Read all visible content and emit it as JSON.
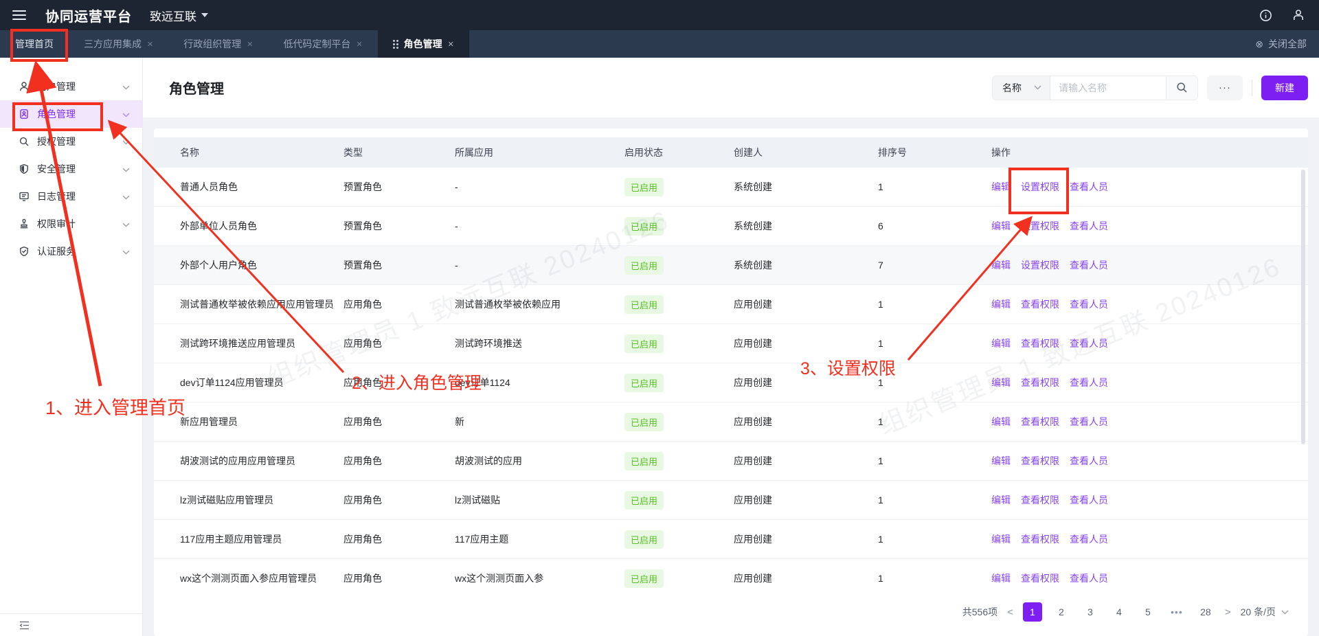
{
  "topbar": {
    "title": "协同运营平台",
    "org": "致远互联"
  },
  "tabbar": {
    "close_all": "关闭全部",
    "tabs": [
      {
        "label": "管理首页",
        "active": false,
        "closable": false,
        "handle": false
      },
      {
        "label": "三方应用集成",
        "active": false,
        "closable": true,
        "handle": false
      },
      {
        "label": "行政组织管理",
        "active": false,
        "closable": true,
        "handle": false
      },
      {
        "label": "低代码定制平台",
        "active": false,
        "closable": true,
        "handle": false
      },
      {
        "label": "角色管理",
        "active": true,
        "closable": true,
        "handle": true
      }
    ]
  },
  "sidebar": {
    "items": [
      {
        "label": "用户管理",
        "icon": "user-icon",
        "active": false
      },
      {
        "label": "角色管理",
        "icon": "role-badge-icon",
        "active": true
      },
      {
        "label": "授权管理",
        "icon": "magnifier-icon",
        "active": false
      },
      {
        "label": "安全管理",
        "icon": "shield-icon",
        "active": false
      },
      {
        "label": "日志管理",
        "icon": "monitor-icon",
        "active": false
      },
      {
        "label": "权限审计",
        "icon": "stamp-icon",
        "active": false
      },
      {
        "label": "认证服务",
        "icon": "shield-check-icon",
        "active": false
      }
    ]
  },
  "page": {
    "title": "角色管理",
    "filter_field": "名称",
    "search_placeholder": "请输入名称",
    "more_label": "···",
    "create_label": "新建"
  },
  "table": {
    "columns": [
      "名称",
      "类型",
      "所属应用",
      "启用状态",
      "创建人",
      "排序号",
      "操作"
    ],
    "rows": [
      {
        "name": "普通人员角色",
        "type": "预置角色",
        "app": "-",
        "status": "已启用",
        "creator": "系统创建",
        "order": "1",
        "actions": [
          "编辑",
          "设置权限",
          "查看人员"
        ]
      },
      {
        "name": "外部单位人员角色",
        "type": "预置角色",
        "app": "-",
        "status": "已启用",
        "creator": "系统创建",
        "order": "6",
        "actions": [
          "编辑",
          "设置权限",
          "查看人员"
        ]
      },
      {
        "name": "外部个人用户角色",
        "type": "预置角色",
        "app": "-",
        "status": "已启用",
        "creator": "系统创建",
        "order": "7",
        "actions": [
          "编辑",
          "设置权限",
          "查看人员"
        ]
      },
      {
        "name": "测试普通枚举被依赖应用应用管理员",
        "type": "应用角色",
        "app": "测试普通枚举被依赖应用",
        "status": "已启用",
        "creator": "应用创建",
        "order": "1",
        "actions": [
          "编辑",
          "查看权限",
          "查看人员"
        ]
      },
      {
        "name": "测试跨环境推送应用管理员",
        "type": "应用角色",
        "app": "测试跨环境推送",
        "status": "已启用",
        "creator": "应用创建",
        "order": "1",
        "actions": [
          "编辑",
          "查看权限",
          "查看人员"
        ]
      },
      {
        "name": "dev订单1124应用管理员",
        "type": "应用角色",
        "app": "dev订单1124",
        "status": "已启用",
        "creator": "应用创建",
        "order": "1",
        "actions": [
          "编辑",
          "查看权限",
          "查看人员"
        ]
      },
      {
        "name": "新应用管理员",
        "type": "应用角色",
        "app": "新",
        "status": "已启用",
        "creator": "应用创建",
        "order": "1",
        "actions": [
          "编辑",
          "查看权限",
          "查看人员"
        ]
      },
      {
        "name": "胡波测试的应用应用管理员",
        "type": "应用角色",
        "app": "胡波测试的应用",
        "status": "已启用",
        "creator": "应用创建",
        "order": "1",
        "actions": [
          "编辑",
          "查看权限",
          "查看人员"
        ]
      },
      {
        "name": "lz测试磁贴应用管理员",
        "type": "应用角色",
        "app": "lz测试磁贴",
        "status": "已启用",
        "creator": "应用创建",
        "order": "1",
        "actions": [
          "编辑",
          "查看权限",
          "查看人员"
        ]
      },
      {
        "name": "117应用主题应用管理员",
        "type": "应用角色",
        "app": "117应用主题",
        "status": "已启用",
        "creator": "应用创建",
        "order": "1",
        "actions": [
          "编辑",
          "查看权限",
          "查看人员"
        ]
      },
      {
        "name": "wx这个测测页面入参应用管理员",
        "type": "应用角色",
        "app": "wx这个测测页面入参",
        "status": "已启用",
        "creator": "应用创建",
        "order": "1",
        "actions": [
          "编辑",
          "查看权限",
          "查看人员"
        ]
      }
    ]
  },
  "pagination": {
    "total": "共556项",
    "prev": "<",
    "next": ">",
    "pages": [
      "1",
      "2",
      "3",
      "4",
      "5",
      "•••",
      "28"
    ],
    "active": "1",
    "page_size": "20 条/页"
  },
  "annotations": {
    "steps": [
      "1、进入管理首页",
      "2、进入角色管理",
      "3、设置权限"
    ]
  },
  "watermark": {
    "text": "组织管理员 1 致远互联 20240126"
  },
  "colors": {
    "accent": "#7d1ef2",
    "link": "#8743f0",
    "annotation_red": "#f1301f",
    "status_text": "#56c123",
    "status_bg": "#e9f8e3",
    "topbar_bg": "#1d2533",
    "tabbar_bg": "#2c3a50"
  }
}
